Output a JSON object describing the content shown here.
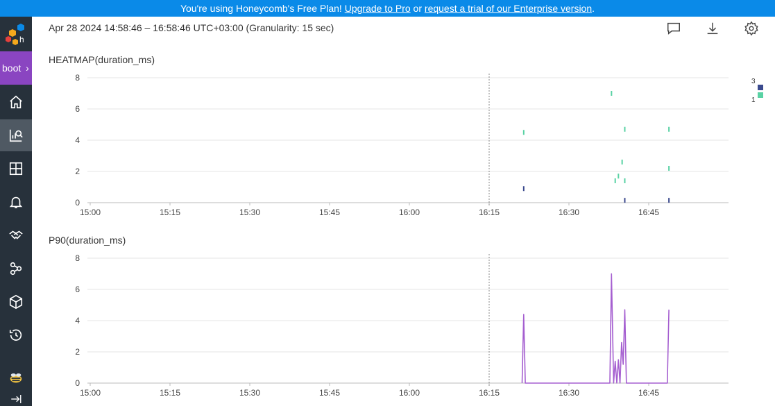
{
  "banner": {
    "prefix": "You're using Honeycomb's Free Plan! ",
    "upgrade_link": "Upgrade to Pro",
    "middle": " or ",
    "trial_link": "request a trial of our Enterprise version",
    "suffix": "."
  },
  "sidebar": {
    "environment": "boot",
    "items": [
      {
        "icon": "home-icon",
        "active": false
      },
      {
        "icon": "query-icon",
        "active": true
      },
      {
        "icon": "boards-icon",
        "active": false
      },
      {
        "icon": "triggers-bell-icon",
        "active": false
      },
      {
        "icon": "handshake-icon",
        "active": false
      },
      {
        "icon": "service-map-icon",
        "active": false
      },
      {
        "icon": "datasets-cube-icon",
        "active": false
      },
      {
        "icon": "history-icon",
        "active": false
      }
    ]
  },
  "header": {
    "time_range": "Apr 28 2024 14:58:46 – 16:58:46 UTC+03:00 (Granularity: 15 sec)",
    "icons": [
      "comment-icon",
      "download-icon",
      "settings-gear-icon"
    ]
  },
  "colors": {
    "banner": "#0a8ae8",
    "sidebar": "#27313b",
    "environment_tab": "#8a45c1",
    "heatmap_low": "#59d2a4",
    "heatmap_high": "#3b4a8e",
    "p90_line": "#a55fd0"
  },
  "chart_data": [
    {
      "type": "heatmap",
      "title": "HEATMAP(duration_ms)",
      "x_ticks": [
        "15:00",
        "15:15",
        "15:30",
        "15:45",
        "16:00",
        "16:15",
        "16:30",
        "16:45"
      ],
      "y_ticks": [
        "0",
        "2",
        "4",
        "6",
        "8"
      ],
      "xlim_minutes": [
        0,
        120
      ],
      "ylim": [
        0,
        8
      ],
      "marker_time_minutes": 75,
      "legend": {
        "max": "3",
        "min": "1"
      },
      "cells": [
        {
          "t": 81.5,
          "y": 4.5,
          "count": 1
        },
        {
          "t": 81.5,
          "y": 0.9,
          "count": 3
        },
        {
          "t": 98.0,
          "y": 7.0,
          "count": 1
        },
        {
          "t": 98.7,
          "y": 1.4,
          "count": 1
        },
        {
          "t": 99.3,
          "y": 1.7,
          "count": 1
        },
        {
          "t": 100.0,
          "y": 2.6,
          "count": 1
        },
        {
          "t": 100.5,
          "y": 4.7,
          "count": 1
        },
        {
          "t": 100.5,
          "y": 1.4,
          "count": 1
        },
        {
          "t": 100.5,
          "y": 0.15,
          "count": 3
        },
        {
          "t": 108.8,
          "y": 4.7,
          "count": 1
        },
        {
          "t": 108.8,
          "y": 2.2,
          "count": 1
        },
        {
          "t": 108.8,
          "y": 0.15,
          "count": 3
        }
      ]
    },
    {
      "type": "line",
      "title": "P90(duration_ms)",
      "x_ticks": [
        "15:00",
        "15:15",
        "15:30",
        "15:45",
        "16:00",
        "16:15",
        "16:30",
        "16:45"
      ],
      "y_ticks": [
        "0",
        "2",
        "4",
        "6",
        "8"
      ],
      "xlim_minutes": [
        0,
        120
      ],
      "ylim": [
        0,
        8
      ],
      "marker_time_minutes": 75,
      "series": [
        {
          "points": [
            [
              81.2,
              0
            ],
            [
              81.5,
              4.4
            ],
            [
              81.8,
              0
            ],
            [
              97.7,
              0
            ],
            [
              98.0,
              7.0
            ],
            [
              98.4,
              0
            ],
            [
              98.7,
              1.4
            ],
            [
              99.0,
              0
            ],
            [
              99.3,
              1.5
            ],
            [
              99.6,
              0
            ],
            [
              99.9,
              2.6
            ],
            [
              100.2,
              1.2
            ],
            [
              100.5,
              4.7
            ],
            [
              100.8,
              0
            ],
            [
              108.5,
              0
            ],
            [
              108.8,
              4.7
            ]
          ]
        }
      ]
    }
  ]
}
